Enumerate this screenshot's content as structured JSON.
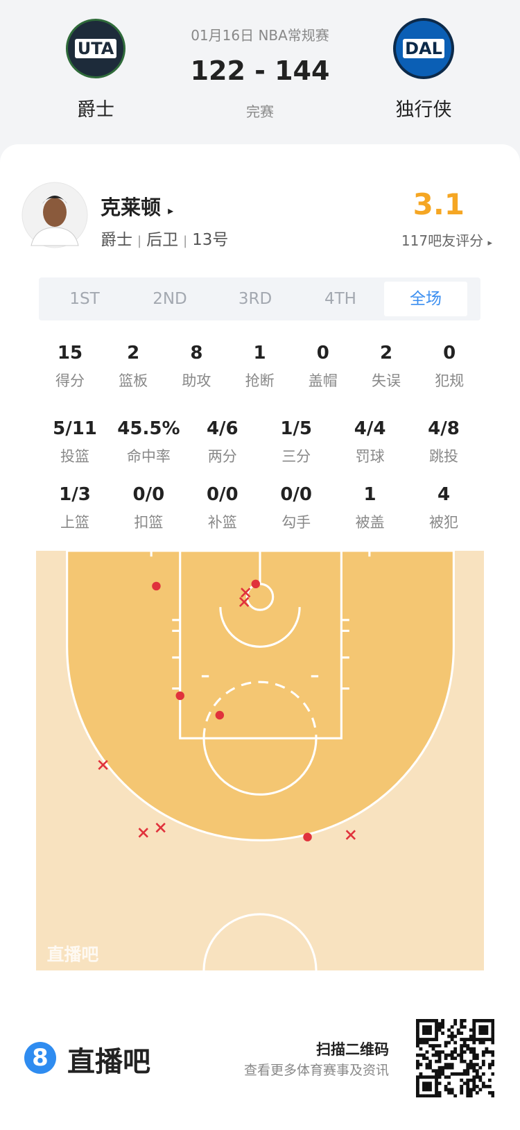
{
  "header": {
    "date": "01月16日 NBA常规赛",
    "score": "122 - 144",
    "status": "完赛",
    "home_team": {
      "logo": "UTA",
      "name": "爵士"
    },
    "away_team": {
      "logo": "DAL",
      "name": "独行侠"
    }
  },
  "player": {
    "name": "克莱顿",
    "info": [
      "爵士",
      "后卫",
      "13号"
    ],
    "rating": "3.1",
    "rating_label": "117吧友评分"
  },
  "tabs": [
    "1ST",
    "2ND",
    "3RD",
    "4TH",
    "全场"
  ],
  "active_tab": 4,
  "stats": [
    [
      {
        "value": "15",
        "label": "得分"
      },
      {
        "value": "2",
        "label": "篮板"
      },
      {
        "value": "8",
        "label": "助攻"
      },
      {
        "value": "1",
        "label": "抢断"
      },
      {
        "value": "0",
        "label": "盖帽"
      },
      {
        "value": "2",
        "label": "失误"
      },
      {
        "value": "0",
        "label": "犯规"
      }
    ],
    [
      {
        "value": "5/11",
        "label": "投篮"
      },
      {
        "value": "45.5%",
        "label": "命中率"
      },
      {
        "value": "4/6",
        "label": "两分"
      },
      {
        "value": "1/5",
        "label": "三分"
      },
      {
        "value": "4/4",
        "label": "罚球"
      },
      {
        "value": "4/8",
        "label": "跳投"
      }
    ],
    [
      {
        "value": "1/3",
        "label": "上篮"
      },
      {
        "value": "0/0",
        "label": "扣篮"
      },
      {
        "value": "0/0",
        "label": "补篮"
      },
      {
        "value": "0/0",
        "label": "勾手"
      },
      {
        "value": "1",
        "label": "被盖"
      },
      {
        "value": "4",
        "label": "被犯"
      }
    ]
  ],
  "court": {
    "watermark": "直播吧"
  },
  "footer": {
    "logo": "8",
    "brand": "直播吧",
    "scan": "扫描二维码",
    "desc": "查看更多体育赛事及资讯"
  }
}
